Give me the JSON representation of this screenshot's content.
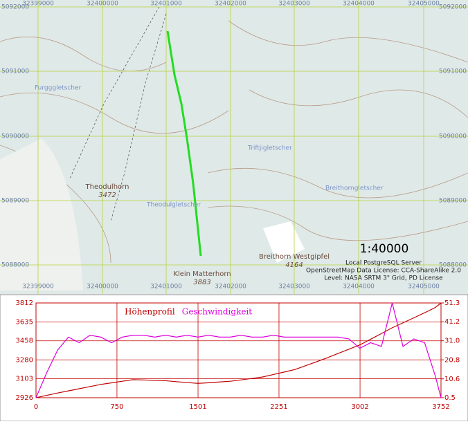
{
  "map": {
    "top_coords": [
      "32399000",
      "32400000",
      "32401000",
      "32402000",
      "32403000",
      "32404000",
      "32405000"
    ],
    "bottom_coords": [
      "32399000",
      "32400000",
      "32401000",
      "32402000",
      "32403000",
      "32404000",
      "32405000"
    ],
    "side_coords": [
      "5092000",
      "5091000",
      "5090000",
      "5089000",
      "5088000"
    ],
    "places": {
      "theodulhorn": "Theodulhorn",
      "theodulhorn_alt": "3472",
      "klein_matterhorn": "Klein Matterhorn",
      "klein_matterhorn_alt": "3883",
      "breithorn": "Breithorn Westgipfel",
      "breithorn_alt": "4164"
    },
    "glaciers": {
      "furgg": "Furgggletscher",
      "theodul": "Theodulgletscher",
      "triftji": "Triftjigletscher",
      "breithorn": "Breithorngletscher"
    },
    "scale": "1:40000",
    "attribution": [
      "Local PostgreSQL Server",
      "OpenStreetMap Data License: CCA-ShareAlike 2.0",
      "Level: NASA SRTM 3\" Grid, PD License"
    ]
  },
  "chart_data": {
    "type": "line",
    "x": [
      0,
      100,
      200,
      300,
      400,
      500,
      600,
      700,
      800,
      900,
      1000,
      1100,
      1200,
      1300,
      1400,
      1500,
      1600,
      1700,
      1800,
      1900,
      2000,
      2100,
      2200,
      2300,
      2400,
      2500,
      2600,
      2700,
      2800,
      2900,
      3000,
      3100,
      3200,
      3300,
      3400,
      3500,
      3600,
      3700,
      3752
    ],
    "xlim": [
      0,
      3752
    ],
    "xticks": [
      0,
      750,
      1501,
      2251,
      3002,
      3752
    ],
    "ylim": [
      2926,
      3812
    ],
    "yticks": [
      2926,
      3103,
      3280,
      3458,
      3635,
      3812
    ],
    "y2lim": [
      0.5,
      51.3
    ],
    "y2ticks": [
      0.5,
      10.6,
      20.8,
      {
        "value": 31,
        "label": "31.0"
      },
      41.2,
      51.3
    ],
    "grid": true,
    "series": [
      {
        "name": "Höhenprofil",
        "color": "#c00000",
        "values": [
          2926,
          2948,
          2970,
          2990,
          3010,
          3030,
          3050,
          3065,
          3080,
          3095,
          3092,
          3088,
          3085,
          3076,
          3068,
          3060,
          3066,
          3073,
          3080,
          3093,
          3106,
          3120,
          3143,
          3166,
          3190,
          3226,
          3263,
          3300,
          3340,
          3380,
          3420,
          3473,
          3526,
          3580,
          3626,
          3673,
          3720,
          3770,
          3812
        ]
      },
      {
        "name": "Geschwindigkeit",
        "color": "#dd00dd",
        "axis": "y2",
        "values": [
          0.5,
          14,
          26,
          33,
          30,
          34,
          33,
          30,
          33,
          34,
          34,
          33,
          34,
          33,
          34,
          33,
          34,
          33,
          33,
          34,
          33,
          33,
          34,
          33,
          33,
          33,
          33,
          33,
          33,
          32,
          27,
          30,
          28,
          51.3,
          28,
          32,
          30,
          12,
          0.5
        ]
      }
    ]
  }
}
